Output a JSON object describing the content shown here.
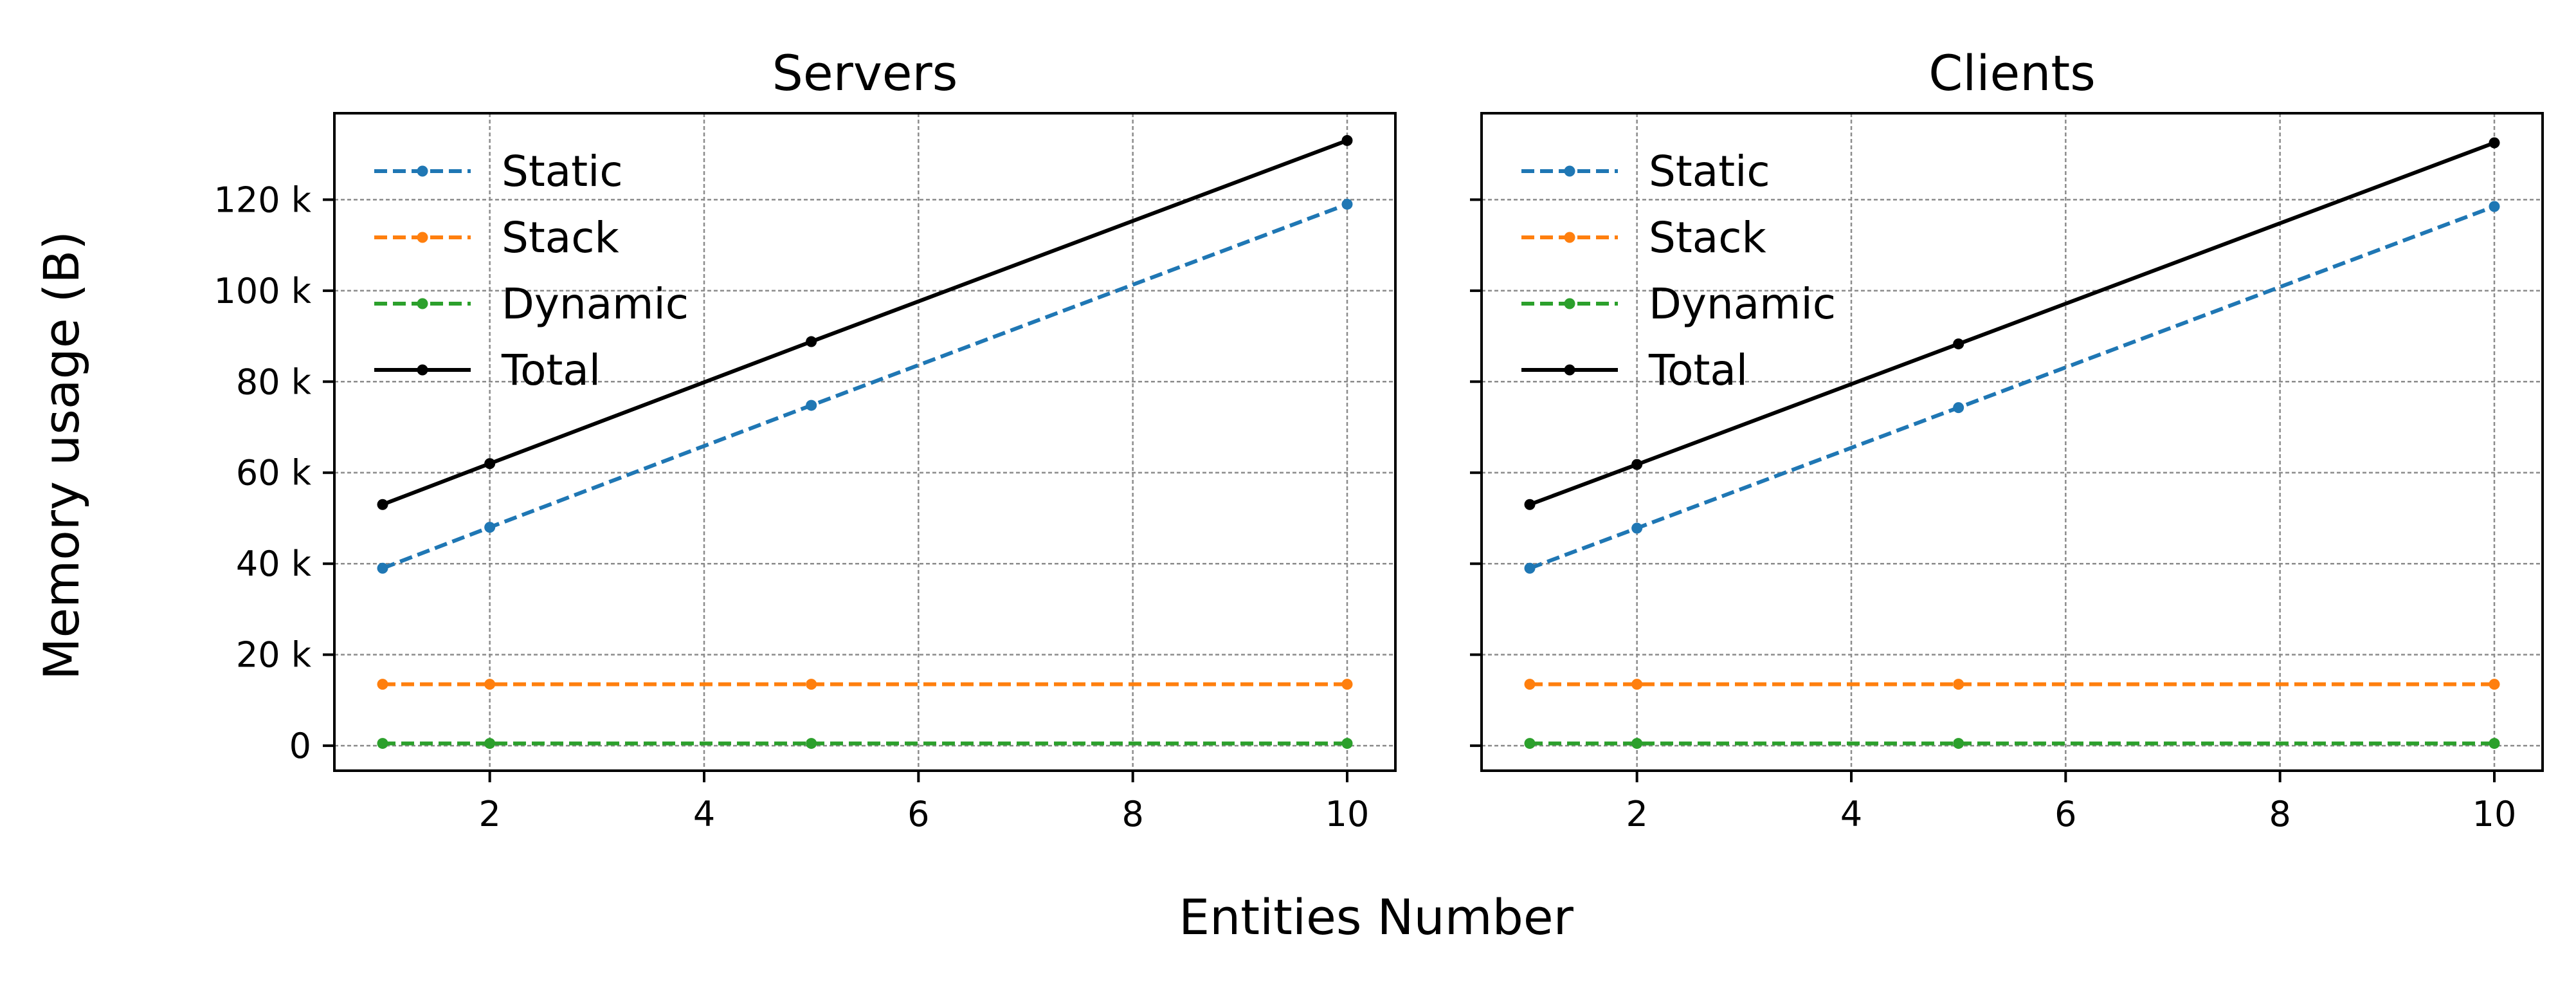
{
  "figure": {
    "ylabel": "Memory usage (B)",
    "xlabel": "Entities Number"
  },
  "chart_data": [
    {
      "type": "line",
      "title": "Servers",
      "xlabel": "Entities Number",
      "ylabel": "Memory usage (B)",
      "x": [
        1,
        2,
        5,
        10
      ],
      "xlim": [
        0.55,
        10.45
      ],
      "ylim": [
        -5500,
        139000
      ],
      "xticks": [
        2,
        4,
        6,
        8,
        10
      ],
      "yticks": [
        0,
        20000,
        40000,
        60000,
        80000,
        100000,
        120000
      ],
      "ytick_labels": [
        "0",
        "20 k",
        "40 k",
        "60 k",
        "80 k",
        "100 k",
        "120 k"
      ],
      "grid": true,
      "legend": "top-left",
      "series": [
        {
          "name": "Static",
          "color": "#1f77b4",
          "dash": "dashed",
          "values": [
            39000,
            48000,
            74800,
            119000
          ]
        },
        {
          "name": "Stack",
          "color": "#ff7f0e",
          "dash": "dashed",
          "values": [
            13500,
            13500,
            13500,
            13500
          ]
        },
        {
          "name": "Dynamic",
          "color": "#2ca02c",
          "dash": "dashed",
          "values": [
            500,
            500,
            500,
            500
          ]
        },
        {
          "name": "Total",
          "color": "#000000",
          "dash": "solid",
          "values": [
            53000,
            62000,
            88800,
            133000
          ]
        }
      ]
    },
    {
      "type": "line",
      "title": "Clients",
      "xlabel": "Entities Number",
      "ylabel": "Memory usage (B)",
      "x": [
        1,
        2,
        5,
        10
      ],
      "xlim": [
        0.55,
        10.45
      ],
      "ylim": [
        -5500,
        139000
      ],
      "xticks": [
        2,
        4,
        6,
        8,
        10
      ],
      "yticks": [
        0,
        20000,
        40000,
        60000,
        80000,
        100000,
        120000
      ],
      "ytick_labels": [
        "",
        "",
        "",
        "",
        "",
        "",
        ""
      ],
      "grid": true,
      "legend": "top-left",
      "series": [
        {
          "name": "Static",
          "color": "#1f77b4",
          "dash": "dashed",
          "values": [
            39000,
            47800,
            74300,
            118500
          ]
        },
        {
          "name": "Stack",
          "color": "#ff7f0e",
          "dash": "dashed",
          "values": [
            13500,
            13500,
            13500,
            13500
          ]
        },
        {
          "name": "Dynamic",
          "color": "#2ca02c",
          "dash": "dashed",
          "values": [
            500,
            500,
            500,
            500
          ]
        },
        {
          "name": "Total",
          "color": "#000000",
          "dash": "solid",
          "values": [
            53000,
            61800,
            88300,
            132500
          ]
        }
      ]
    }
  ]
}
